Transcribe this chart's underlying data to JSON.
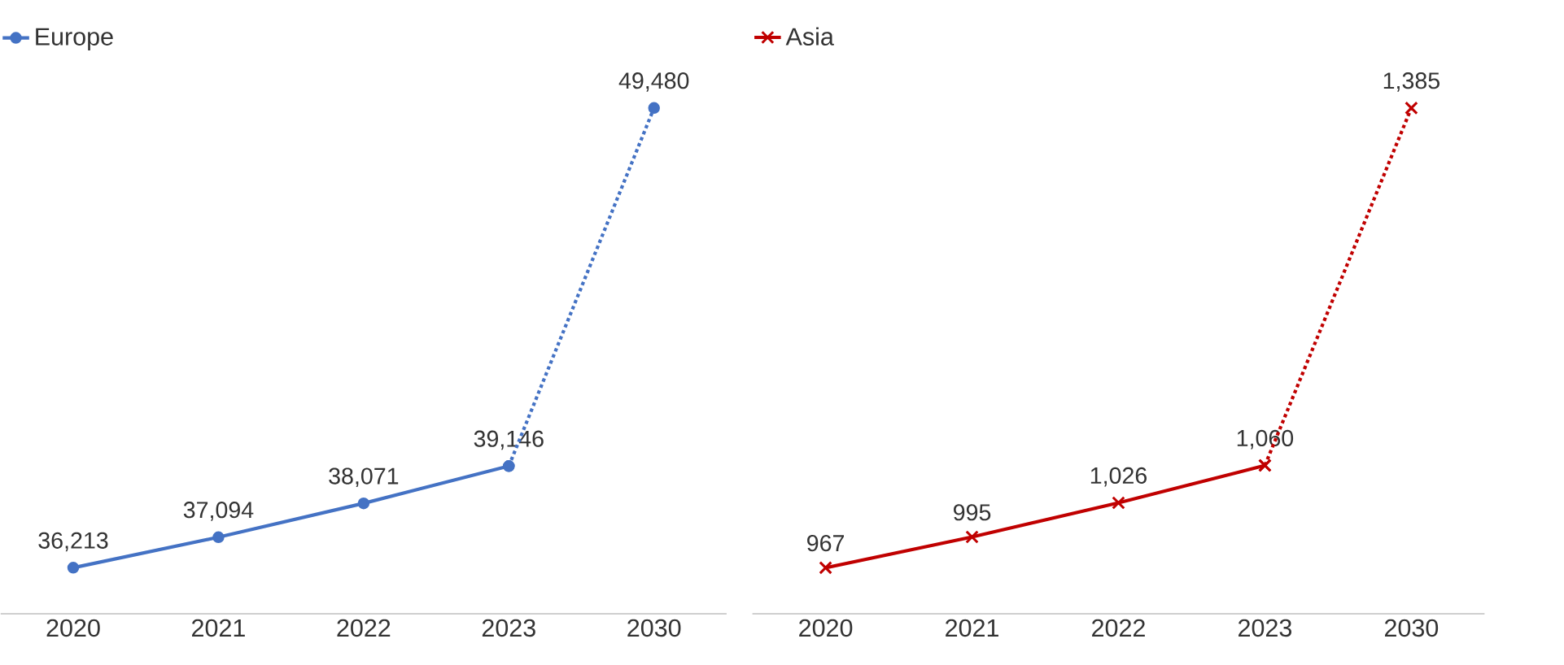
{
  "chart_data": [
    {
      "type": "line",
      "categories": [
        "2020",
        "2021",
        "2022",
        "2023",
        "2030"
      ],
      "tick_labels": "x",
      "legend": "top left",
      "marker": "circle",
      "series": [
        {
          "name": "Europe",
          "color": "#4472c4",
          "line_style": "solid",
          "values": [
            36213,
            37094,
            38071,
            39146,
            null
          ],
          "value_labels": [
            "36,213",
            "37,094",
            "38,071",
            "39,146",
            null
          ]
        },
        {
          "color": "#4472c4",
          "line_style": "dotted",
          "values": [
            null,
            null,
            null,
            39146,
            49480
          ],
          "value_labels": [
            null,
            null,
            null,
            null,
            "49,480"
          ]
        }
      ]
    },
    {
      "type": "line",
      "categories": [
        "2020",
        "2021",
        "2022",
        "2023",
        "2030"
      ],
      "tick_labels": "x",
      "legend": "top left",
      "marker": "cross",
      "series": [
        {
          "name": "Asia",
          "color": "#c00000",
          "line_style": "solid",
          "values": [
            967,
            995,
            1026,
            1060,
            null
          ],
          "value_labels": [
            "967",
            "995",
            "1,026",
            "1,060",
            null
          ]
        },
        {
          "color": "#c00000",
          "line_style": "dotted",
          "values": [
            null,
            null,
            null,
            1060,
            1385
          ],
          "value_labels": [
            null,
            null,
            null,
            null,
            "1,385"
          ]
        }
      ]
    }
  ]
}
